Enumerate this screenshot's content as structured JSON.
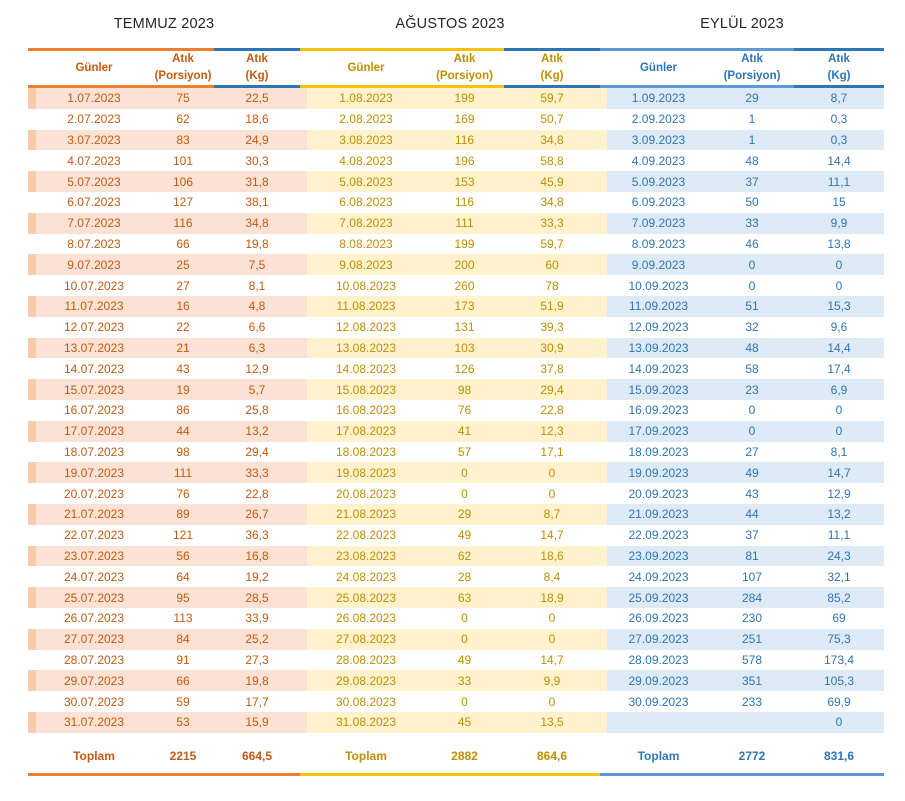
{
  "months": [
    {
      "title": "TEMMUZ 2023",
      "headers": {
        "days": "Günler",
        "portion_line1": "Atık",
        "portion_line2": "(Porsiyon)",
        "kg_line1": "Atık",
        "kg_line2": "(Kg)"
      },
      "theme": {
        "text": "#C55A11",
        "band": "#FBE2D5",
        "strip_band": "#F8CBAD",
        "border": "#ED7D31",
        "kg_border": "#2E75B6",
        "bottom_border": "#ED7D31"
      },
      "rows": [
        [
          "1.07.2023",
          "75",
          "22,5"
        ],
        [
          "2.07.2023",
          "62",
          "18,6"
        ],
        [
          "3.07.2023",
          "83",
          "24,9"
        ],
        [
          "4.07.2023",
          "101",
          "30,3"
        ],
        [
          "5.07.2023",
          "106",
          "31,8"
        ],
        [
          "6.07.2023",
          "127",
          "38,1"
        ],
        [
          "7.07.2023",
          "116",
          "34,8"
        ],
        [
          "8.07.2023",
          "66",
          "19,8"
        ],
        [
          "9.07.2023",
          "25",
          "7,5"
        ],
        [
          "10.07.2023",
          "27",
          "8,1"
        ],
        [
          "11.07.2023",
          "16",
          "4,8"
        ],
        [
          "12.07.2023",
          "22",
          "6,6"
        ],
        [
          "13.07.2023",
          "21",
          "6,3"
        ],
        [
          "14.07.2023",
          "43",
          "12,9"
        ],
        [
          "15.07.2023",
          "19",
          "5,7"
        ],
        [
          "16.07.2023",
          "86",
          "25,8"
        ],
        [
          "17.07.2023",
          "44",
          "13,2"
        ],
        [
          "18.07.2023",
          "98",
          "29,4"
        ],
        [
          "19.07.2023",
          "111",
          "33,3"
        ],
        [
          "20.07.2023",
          "76",
          "22,8"
        ],
        [
          "21.07.2023",
          "89",
          "26,7"
        ],
        [
          "22.07.2023",
          "121",
          "36,3"
        ],
        [
          "23.07.2023",
          "56",
          "16,8"
        ],
        [
          "24.07.2023",
          "64",
          "19,2"
        ],
        [
          "25.07.2023",
          "95",
          "28,5"
        ],
        [
          "26.07.2023",
          "113",
          "33,9"
        ],
        [
          "27.07.2023",
          "84",
          "25,2"
        ],
        [
          "28.07.2023",
          "91",
          "27,3"
        ],
        [
          "29.07.2023",
          "66",
          "19,8"
        ],
        [
          "30.07.2023",
          "59",
          "17,7"
        ],
        [
          "31.07.2023",
          "53",
          "15,9"
        ]
      ],
      "total_label": "Toplam",
      "total_portion": "2215",
      "total_kg": "664,5"
    },
    {
      "title": "AĞUSTOS 2023",
      "headers": {
        "days": "Günler",
        "portion_line1": "Atık",
        "portion_line2": "(Porsiyon)",
        "kg_line1": "Atık",
        "kg_line2": "(Kg)"
      },
      "theme": {
        "text": "#BF8F00",
        "band": "#FFF2CC",
        "strip_band": "#FBE2D5",
        "border": "#FFC000",
        "kg_border": "#2E75B6",
        "bottom_border": "#FFC000"
      },
      "rows": [
        [
          "1.08.2023",
          "199",
          "59,7"
        ],
        [
          "2.08.2023",
          "169",
          "50,7"
        ],
        [
          "3.08.2023",
          "116",
          "34,8"
        ],
        [
          "4.08.2023",
          "196",
          "58,8"
        ],
        [
          "5.08.2023",
          "153",
          "45,9"
        ],
        [
          "6.08.2023",
          "116",
          "34,8"
        ],
        [
          "7.08.2023",
          "111",
          "33,3"
        ],
        [
          "8.08.2023",
          "199",
          "59,7"
        ],
        [
          "9.08.2023",
          "200",
          "60"
        ],
        [
          "10.08.2023",
          "260",
          "78"
        ],
        [
          "11.08.2023",
          "173",
          "51,9"
        ],
        [
          "12.08.2023",
          "131",
          "39,3"
        ],
        [
          "13.08.2023",
          "103",
          "30,9"
        ],
        [
          "14.08.2023",
          "126",
          "37,8"
        ],
        [
          "15.08.2023",
          "98",
          "29,4"
        ],
        [
          "16.08.2023",
          "76",
          "22,8"
        ],
        [
          "17.08.2023",
          "41",
          "12,3"
        ],
        [
          "18.08.2023",
          "57",
          "17,1"
        ],
        [
          "19.08.2023",
          "0",
          "0"
        ],
        [
          "20.08.2023",
          "0",
          "0"
        ],
        [
          "21.08.2023",
          "29",
          "8,7"
        ],
        [
          "22.08.2023",
          "49",
          "14,7"
        ],
        [
          "23.08.2023",
          "62",
          "18,6"
        ],
        [
          "24.08.2023",
          "28",
          "8,4"
        ],
        [
          "25.08.2023",
          "63",
          "18,9"
        ],
        [
          "26.08.2023",
          "0",
          "0"
        ],
        [
          "27.08.2023",
          "0",
          "0"
        ],
        [
          "28.08.2023",
          "49",
          "14,7"
        ],
        [
          "29.08.2023",
          "33",
          "9,9"
        ],
        [
          "30.08.2023",
          "0",
          "0"
        ],
        [
          "31.08.2023",
          "45",
          "13,5"
        ]
      ],
      "total_label": "Toplam",
      "total_portion": "2882",
      "total_kg": "864,6"
    },
    {
      "title": "EYLÜL 2023",
      "headers": {
        "days": "Günler",
        "portion_line1": "Atık",
        "portion_line2": "(Porsiyon)",
        "kg_line1": "Atık",
        "kg_line2": "(Kg)"
      },
      "theme": {
        "text": "#2E75B6",
        "band": "#DEEAF6",
        "strip_band": "#FFF2CC",
        "border": "#5B9BD5",
        "kg_border": "#2E75B6",
        "bottom_border": "#5B9BD5"
      },
      "rows": [
        [
          "1.09.2023",
          "29",
          "8,7"
        ],
        [
          "2.09.2023",
          "1",
          "0,3"
        ],
        [
          "3.09.2023",
          "1",
          "0,3"
        ],
        [
          "4.09.2023",
          "48",
          "14,4"
        ],
        [
          "5.09.2023",
          "37",
          "11,1"
        ],
        [
          "6.09.2023",
          "50",
          "15"
        ],
        [
          "7.09.2023",
          "33",
          "9,9"
        ],
        [
          "8.09.2023",
          "46",
          "13,8"
        ],
        [
          "9.09.2023",
          "0",
          "0"
        ],
        [
          "10.09.2023",
          "0",
          "0"
        ],
        [
          "11.09.2023",
          "51",
          "15,3"
        ],
        [
          "12.09.2023",
          "32",
          "9,6"
        ],
        [
          "13.09.2023",
          "48",
          "14,4"
        ],
        [
          "14.09.2023",
          "58",
          "17,4"
        ],
        [
          "15.09.2023",
          "23",
          "6,9"
        ],
        [
          "16.09.2023",
          "0",
          "0"
        ],
        [
          "17.09.2023",
          "0",
          "0"
        ],
        [
          "18.09.2023",
          "27",
          "8,1"
        ],
        [
          "19.09.2023",
          "49",
          "14,7"
        ],
        [
          "20.09.2023",
          "43",
          "12,9"
        ],
        [
          "21.09.2023",
          "44",
          "13,2"
        ],
        [
          "22.09.2023",
          "37",
          "11,1"
        ],
        [
          "23.09.2023",
          "81",
          "24,3"
        ],
        [
          "24.09.2023",
          "107",
          "32,1"
        ],
        [
          "25.09.2023",
          "284",
          "85,2"
        ],
        [
          "26.09.2023",
          "230",
          "69"
        ],
        [
          "27.09.2023",
          "251",
          "75,3"
        ],
        [
          "28.09.2023",
          "578",
          "173,4"
        ],
        [
          "29.09.2023",
          "351",
          "105,3"
        ],
        [
          "30.09.2023",
          "233",
          "69,9"
        ],
        [
          "",
          "",
          "0"
        ]
      ],
      "total_label": "Toplam",
      "total_portion": "2772",
      "total_kg": "831,6"
    }
  ]
}
